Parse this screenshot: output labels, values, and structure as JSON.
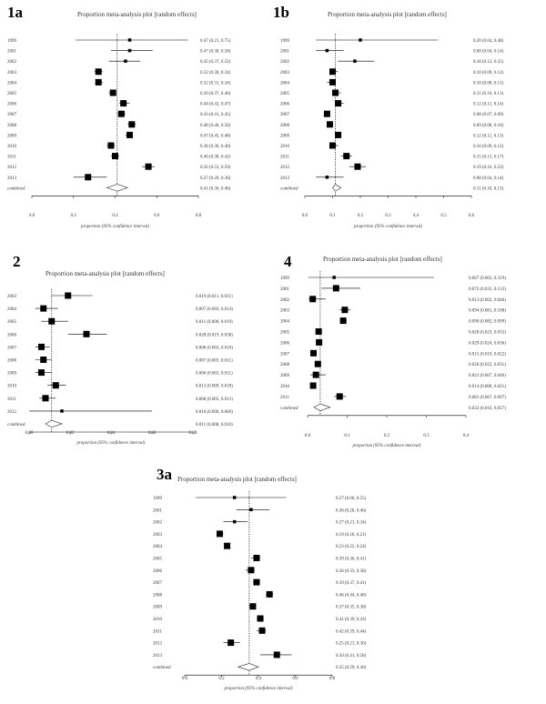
{
  "chart_data": [
    {
      "id": "1a",
      "panel_label": "1a",
      "type": "forest",
      "title": "Proportion meta-analysis plot [random effects]",
      "xlabel": "proportion (95% confidence interval)",
      "xlim": [
        0,
        0.8
      ],
      "ticks": [
        "0.0",
        "0.2",
        "0.4",
        "0.6",
        "0.8"
      ],
      "rows": [
        {
          "label": "1999",
          "est": 0.47,
          "lo": 0.21,
          "hi": 0.75,
          "ci": "0.47 (0.21, 0.75)",
          "size": "small"
        },
        {
          "label": "2001",
          "est": 0.47,
          "lo": 0.38,
          "hi": 0.58,
          "ci": "0.47 (0.38, 0.58)",
          "size": "small"
        },
        {
          "label": "2002",
          "est": 0.45,
          "lo": 0.37,
          "hi": 0.52,
          "ci": "0.45 (0.37, 0.52)",
          "size": "small"
        },
        {
          "label": "2003",
          "est": 0.32,
          "lo": 0.3,
          "hi": 0.34,
          "ci": "0.32 (0.30, 0.34)",
          "size": "big"
        },
        {
          "label": "2004",
          "est": 0.32,
          "lo": 0.31,
          "hi": 0.34,
          "ci": "0.32 (0.31, 0.34)",
          "size": "big"
        },
        {
          "label": "2005",
          "est": 0.39,
          "lo": 0.37,
          "hi": 0.4,
          "ci": "0.39 (0.37, 0.40)",
          "size": "big"
        },
        {
          "label": "2006",
          "est": 0.44,
          "lo": 0.42,
          "hi": 0.47,
          "ci": "0.44 (0.42, 0.47)",
          "size": "big"
        },
        {
          "label": "2007",
          "est": 0.43,
          "lo": 0.41,
          "hi": 0.45,
          "ci": "0.43 (0.41, 0.45)",
          "size": "big"
        },
        {
          "label": "2008",
          "est": 0.48,
          "lo": 0.46,
          "hi": 0.5,
          "ci": "0.48 (0.46, 0.50)",
          "size": "big"
        },
        {
          "label": "2009",
          "est": 0.47,
          "lo": 0.45,
          "hi": 0.48,
          "ci": "0.47 (0.45, 0.48)",
          "size": "big"
        },
        {
          "label": "2010",
          "est": 0.38,
          "lo": 0.36,
          "hi": 0.4,
          "ci": "0.38 (0.36, 0.40)",
          "size": "big"
        },
        {
          "label": "2011",
          "est": 0.4,
          "lo": 0.38,
          "hi": 0.42,
          "ci": "0.40 (0.38, 0.42)",
          "size": "big"
        },
        {
          "label": "2012",
          "est": 0.56,
          "lo": 0.53,
          "hi": 0.59,
          "ci": "0.56 (0.53, 0.59)",
          "size": "big"
        },
        {
          "label": "2013",
          "est": 0.27,
          "lo": 0.2,
          "hi": 0.36,
          "ci": "0.27 (0.20, 0.36)",
          "size": "big"
        }
      ],
      "combined": {
        "label": "combined",
        "est": 0.41,
        "lo": 0.36,
        "hi": 0.46,
        "ci": "0.41 (0.36, 0.46)"
      }
    },
    {
      "id": "1b",
      "panel_label": "1b",
      "type": "forest",
      "title": "Proportion meta-analysis plot [random effects]",
      "xlabel": "proportion (95% confidence interval)",
      "xlim": [
        0,
        0.6
      ],
      "ticks": [
        "0.0",
        "0.1",
        "0.2",
        "0.3",
        "0.4",
        "0.5",
        "0.6"
      ],
      "rows": [
        {
          "label": "1999",
          "est": 0.2,
          "lo": 0.04,
          "hi": 0.48,
          "ci": "0.20 (0.04, 0.48)",
          "size": "small"
        },
        {
          "label": "2001",
          "est": 0.08,
          "lo": 0.04,
          "hi": 0.14,
          "ci": "0.08 (0.04, 0.14)",
          "size": "small"
        },
        {
          "label": "2002",
          "est": 0.18,
          "lo": 0.12,
          "hi": 0.25,
          "ci": "0.18 (0.12, 0.25)",
          "size": "small"
        },
        {
          "label": "2003",
          "est": 0.1,
          "lo": 0.09,
          "hi": 0.12,
          "ci": "0.10 (0.09, 0.12)",
          "size": "big"
        },
        {
          "label": "2004",
          "est": 0.1,
          "lo": 0.08,
          "hi": 0.11,
          "ci": "0.10 (0.08, 0.11)",
          "size": "big"
        },
        {
          "label": "2005",
          "est": 0.11,
          "lo": 0.1,
          "hi": 0.13,
          "ci": "0.11 (0.10, 0.13)",
          "size": "big"
        },
        {
          "label": "2006",
          "est": 0.12,
          "lo": 0.11,
          "hi": 0.14,
          "ci": "0.12 (0.11, 0.14)",
          "size": "big"
        },
        {
          "label": "2007",
          "est": 0.08,
          "lo": 0.07,
          "hi": 0.09,
          "ci": "0.08 (0.07, 0.09)",
          "size": "big"
        },
        {
          "label": "2008",
          "est": 0.09,
          "lo": 0.08,
          "hi": 0.1,
          "ci": "0.09 (0.08, 0.10)",
          "size": "big"
        },
        {
          "label": "2009",
          "est": 0.12,
          "lo": 0.11,
          "hi": 0.13,
          "ci": "0.12 (0.11, 0.13)",
          "size": "big"
        },
        {
          "label": "2010",
          "est": 0.1,
          "lo": 0.09,
          "hi": 0.12,
          "ci": "0.10 (0.09, 0.12)",
          "size": "big"
        },
        {
          "label": "2011",
          "est": 0.15,
          "lo": 0.13,
          "hi": 0.17,
          "ci": "0.15 (0.13, 0.17)",
          "size": "big"
        },
        {
          "label": "2012",
          "est": 0.19,
          "lo": 0.16,
          "hi": 0.22,
          "ci": "0.19 (0.16, 0.22)",
          "size": "big"
        },
        {
          "label": "2013",
          "est": 0.08,
          "lo": 0.04,
          "hi": 0.14,
          "ci": "0.08 (0.04, 0.14)",
          "size": "small"
        }
      ],
      "combined": {
        "label": "combined",
        "est": 0.11,
        "lo": 0.1,
        "hi": 0.13,
        "ci": "0.11 (0.10, 0.13)"
      }
    },
    {
      "id": "2",
      "panel_label": "2",
      "type": "forest",
      "title": "Proportion meta-analysis plot [random effects]",
      "xlabel": "proportion (95% confidence interval)",
      "xlim": [
        0,
        0.08
      ],
      "ticks": [
        "0.00",
        "0.02",
        "0.04",
        "0.06",
        "0.08"
      ],
      "rows": [
        {
          "label": "2003",
          "est": 0.019,
          "lo": 0.011,
          "hi": 0.031,
          "ci": "0.019 (0.011, 0.031)",
          "size": "big"
        },
        {
          "label": "2004",
          "est": 0.007,
          "lo": 0.003,
          "hi": 0.014,
          "ci": "0.007 (0.003, 0.014)",
          "size": "big"
        },
        {
          "label": "2005",
          "est": 0.011,
          "lo": 0.006,
          "hi": 0.019,
          "ci": "0.011 (0.006, 0.019)",
          "size": "big"
        },
        {
          "label": "2006",
          "est": 0.028,
          "lo": 0.019,
          "hi": 0.038,
          "ci": "0.028 (0.019, 0.038)",
          "size": "big"
        },
        {
          "label": "2007",
          "est": 0.006,
          "lo": 0.003,
          "hi": 0.01,
          "ci": "0.006 (0.003, 0.010)",
          "size": "big"
        },
        {
          "label": "2008",
          "est": 0.007,
          "lo": 0.003,
          "hi": 0.011,
          "ci": "0.007 (0.003, 0.011)",
          "size": "big"
        },
        {
          "label": "2009",
          "est": 0.006,
          "lo": 0.003,
          "hi": 0.011,
          "ci": "0.006 (0.003, 0.011)",
          "size": "big"
        },
        {
          "label": "2010",
          "est": 0.013,
          "lo": 0.009,
          "hi": 0.018,
          "ci": "0.013 (0.009, 0.018)",
          "size": "big"
        },
        {
          "label": "2011",
          "est": 0.008,
          "lo": 0.005,
          "hi": 0.013,
          "ci": "0.008 (0.005, 0.013)",
          "size": "big"
        },
        {
          "label": "2012",
          "est": 0.016,
          "lo": 0.0,
          "hi": 0.06,
          "ci": "0.016 (0.000, 0.060)",
          "size": "small"
        }
      ],
      "combined": {
        "label": "combined",
        "est": 0.011,
        "lo": 0.008,
        "hi": 0.016,
        "ci": "0.011 (0.008, 0.016)"
      }
    },
    {
      "id": "4",
      "panel_label": "4",
      "type": "forest",
      "title": "Proportion meta-analysis plot [random effects]",
      "xlabel": "proportion (95% confidence interval)",
      "xlim": [
        0,
        0.4
      ],
      "ticks": [
        "0.0",
        "0.1",
        "0.2",
        "0.3",
        "0.4"
      ],
      "rows": [
        {
          "label": "1999",
          "est": 0.067,
          "lo": 0.002,
          "hi": 0.319,
          "ci": "0.067 (0.002, 0.319)",
          "size": "small"
        },
        {
          "label": "2001",
          "est": 0.072,
          "lo": 0.035,
          "hi": 0.133,
          "ci": "0.072 (0.035, 0.133)",
          "size": "big"
        },
        {
          "label": "2002",
          "est": 0.013,
          "lo": 0.002,
          "hi": 0.046,
          "ci": "0.013 (0.002, 0.046)",
          "size": "big"
        },
        {
          "label": "2003",
          "est": 0.094,
          "lo": 0.081,
          "hi": 0.108,
          "ci": "0.094 (0.081, 0.108)",
          "size": "big"
        },
        {
          "label": "2004",
          "est": 0.09,
          "lo": 0.082,
          "hi": 0.099,
          "ci": "0.090 (0.082, 0.099)",
          "size": "big"
        },
        {
          "label": "2005",
          "est": 0.028,
          "lo": 0.023,
          "hi": 0.033,
          "ci": "0.028 (0.023, 0.033)",
          "size": "big"
        },
        {
          "label": "2006",
          "est": 0.029,
          "lo": 0.024,
          "hi": 0.036,
          "ci": "0.029 (0.024, 0.036)",
          "size": "big"
        },
        {
          "label": "2007",
          "est": 0.015,
          "lo": 0.01,
          "hi": 0.022,
          "ci": "0.015 (0.010, 0.022)",
          "size": "big"
        },
        {
          "label": "2008",
          "est": 0.026,
          "lo": 0.022,
          "hi": 0.031,
          "ci": "0.026 (0.022, 0.031)",
          "size": "big"
        },
        {
          "label": "2009",
          "est": 0.021,
          "lo": 0.007,
          "hi": 0.046,
          "ci": "0.021 (0.007, 0.046)",
          "size": "big"
        },
        {
          "label": "2010",
          "est": 0.014,
          "lo": 0.008,
          "hi": 0.021,
          "ci": "0.014 (0.008, 0.021)",
          "size": "big"
        },
        {
          "label": "2011",
          "est": 0.081,
          "lo": 0.067,
          "hi": 0.097,
          "ci": "0.081 (0.067, 0.097)",
          "size": "big"
        }
      ],
      "combined": {
        "label": "combined",
        "est": 0.032,
        "lo": 0.016,
        "hi": 0.057,
        "ci": "0.032 (0.016, 0.057)"
      }
    },
    {
      "id": "3a",
      "panel_label": "3a",
      "type": "forest",
      "title": "Proportion meta-analysis plot [random effects]",
      "xlabel": "proportion (95% confidence interval)",
      "xlim": [
        0,
        0.8
      ],
      "ticks": [
        "0.0",
        "0.2",
        "0.4",
        "0.6",
        "0.8"
      ],
      "rows": [
        {
          "label": "1999",
          "est": 0.27,
          "lo": 0.06,
          "hi": 0.55,
          "ci": "0.27 (0.06, 0.55)",
          "size": "small"
        },
        {
          "label": "2001",
          "est": 0.36,
          "lo": 0.28,
          "hi": 0.46,
          "ci": "0.36 (0.28, 0.46)",
          "size": "small"
        },
        {
          "label": "2002",
          "est": 0.27,
          "lo": 0.21,
          "hi": 0.34,
          "ci": "0.27 (0.21, 0.34)",
          "size": "small"
        },
        {
          "label": "2003",
          "est": 0.19,
          "lo": 0.18,
          "hi": 0.21,
          "ci": "0.19 (0.18, 0.21)",
          "size": "big"
        },
        {
          "label": "2004",
          "est": 0.23,
          "lo": 0.22,
          "hi": 0.24,
          "ci": "0.23 (0.22, 0.24)",
          "size": "big"
        },
        {
          "label": "2005",
          "est": 0.39,
          "lo": 0.36,
          "hi": 0.41,
          "ci": "0.39 (0.36, 0.41)",
          "size": "big"
        },
        {
          "label": "2006",
          "est": 0.36,
          "lo": 0.33,
          "hi": 0.38,
          "ci": "0.36 (0.33, 0.38)",
          "size": "big"
        },
        {
          "label": "2007",
          "est": 0.39,
          "lo": 0.37,
          "hi": 0.41,
          "ci": "0.39 (0.37, 0.41)",
          "size": "big"
        },
        {
          "label": "2008",
          "est": 0.46,
          "lo": 0.44,
          "hi": 0.48,
          "ci": "0.46 (0.44, 0.48)",
          "size": "big"
        },
        {
          "label": "2009",
          "est": 0.37,
          "lo": 0.35,
          "hi": 0.38,
          "ci": "0.37 (0.35, 0.38)",
          "size": "big"
        },
        {
          "label": "2010",
          "est": 0.41,
          "lo": 0.39,
          "hi": 0.43,
          "ci": "0.41 (0.39, 0.43)",
          "size": "big"
        },
        {
          "label": "2011",
          "est": 0.42,
          "lo": 0.39,
          "hi": 0.44,
          "ci": "0.42 (0.39, 0.44)",
          "size": "big"
        },
        {
          "label": "2012",
          "est": 0.25,
          "lo": 0.21,
          "hi": 0.3,
          "ci": "0.25 (0.21, 0.30)",
          "size": "big"
        },
        {
          "label": "2013",
          "est": 0.5,
          "lo": 0.41,
          "hi": 0.58,
          "ci": "0.50 (0.41, 0.58)",
          "size": "big"
        }
      ],
      "combined": {
        "label": "combined",
        "est": 0.35,
        "lo": 0.29,
        "hi": 0.4,
        "ci": "0.35 (0.29, 0.40)"
      }
    }
  ]
}
